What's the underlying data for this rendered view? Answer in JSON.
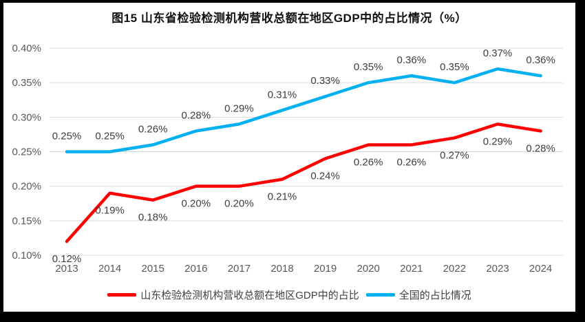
{
  "page": {
    "frame_color": "#000000",
    "panel_color": "#ffffff"
  },
  "chart_data": {
    "type": "line",
    "title": "图15  山东省检验检测机构营收总额在地区GDP中的占比情况（%）",
    "categories": [
      "2013",
      "2014",
      "2015",
      "2016",
      "2017",
      "2018",
      "2019",
      "2020",
      "2021",
      "2022",
      "2023",
      "2024"
    ],
    "series": [
      {
        "name": "山东检验检测机构营收总额在地区GDP中的占比",
        "color": "#ff0000",
        "values": [
          0.12,
          0.19,
          0.18,
          0.2,
          0.2,
          0.21,
          0.24,
          0.26,
          0.26,
          0.27,
          0.29,
          0.28
        ],
        "data_labels": [
          "0.12%",
          "0.19%",
          "0.18%",
          "0.20%",
          "0.20%",
          "0.21%",
          "0.24%",
          "0.26%",
          "0.26%",
          "0.27%",
          "0.29%",
          "0.28%"
        ],
        "label_position": "below"
      },
      {
        "name": "全国的占比情况",
        "color": "#00b0f0",
        "values": [
          0.25,
          0.25,
          0.26,
          0.28,
          0.29,
          0.31,
          0.33,
          0.35,
          0.36,
          0.35,
          0.37,
          0.36
        ],
        "data_labels": [
          "0.25%",
          "0.25%",
          "0.26%",
          "0.28%",
          "0.29%",
          "0.31%",
          "0.33%",
          "0.35%",
          "0.36%",
          "0.35%",
          "0.37%",
          "0.36%"
        ],
        "label_position": "above"
      }
    ],
    "xlabel": "",
    "ylabel": "",
    "ylim": [
      0.1,
      0.4
    ],
    "yticks": [
      {
        "value": 0.4,
        "label": "0.40%"
      },
      {
        "value": 0.35,
        "label": "0.35%"
      },
      {
        "value": 0.3,
        "label": "0.30%"
      },
      {
        "value": 0.25,
        "label": "0.25%"
      },
      {
        "value": 0.2,
        "label": "0.20%"
      },
      {
        "value": 0.15,
        "label": "0.15%"
      },
      {
        "value": 0.1,
        "label": "0.10%"
      }
    ],
    "grid": true,
    "legend_position": "bottom",
    "axis_text_color": "#595959",
    "data_label_color": "#3d3d3d",
    "gridline_color": "#d9d9d9"
  }
}
